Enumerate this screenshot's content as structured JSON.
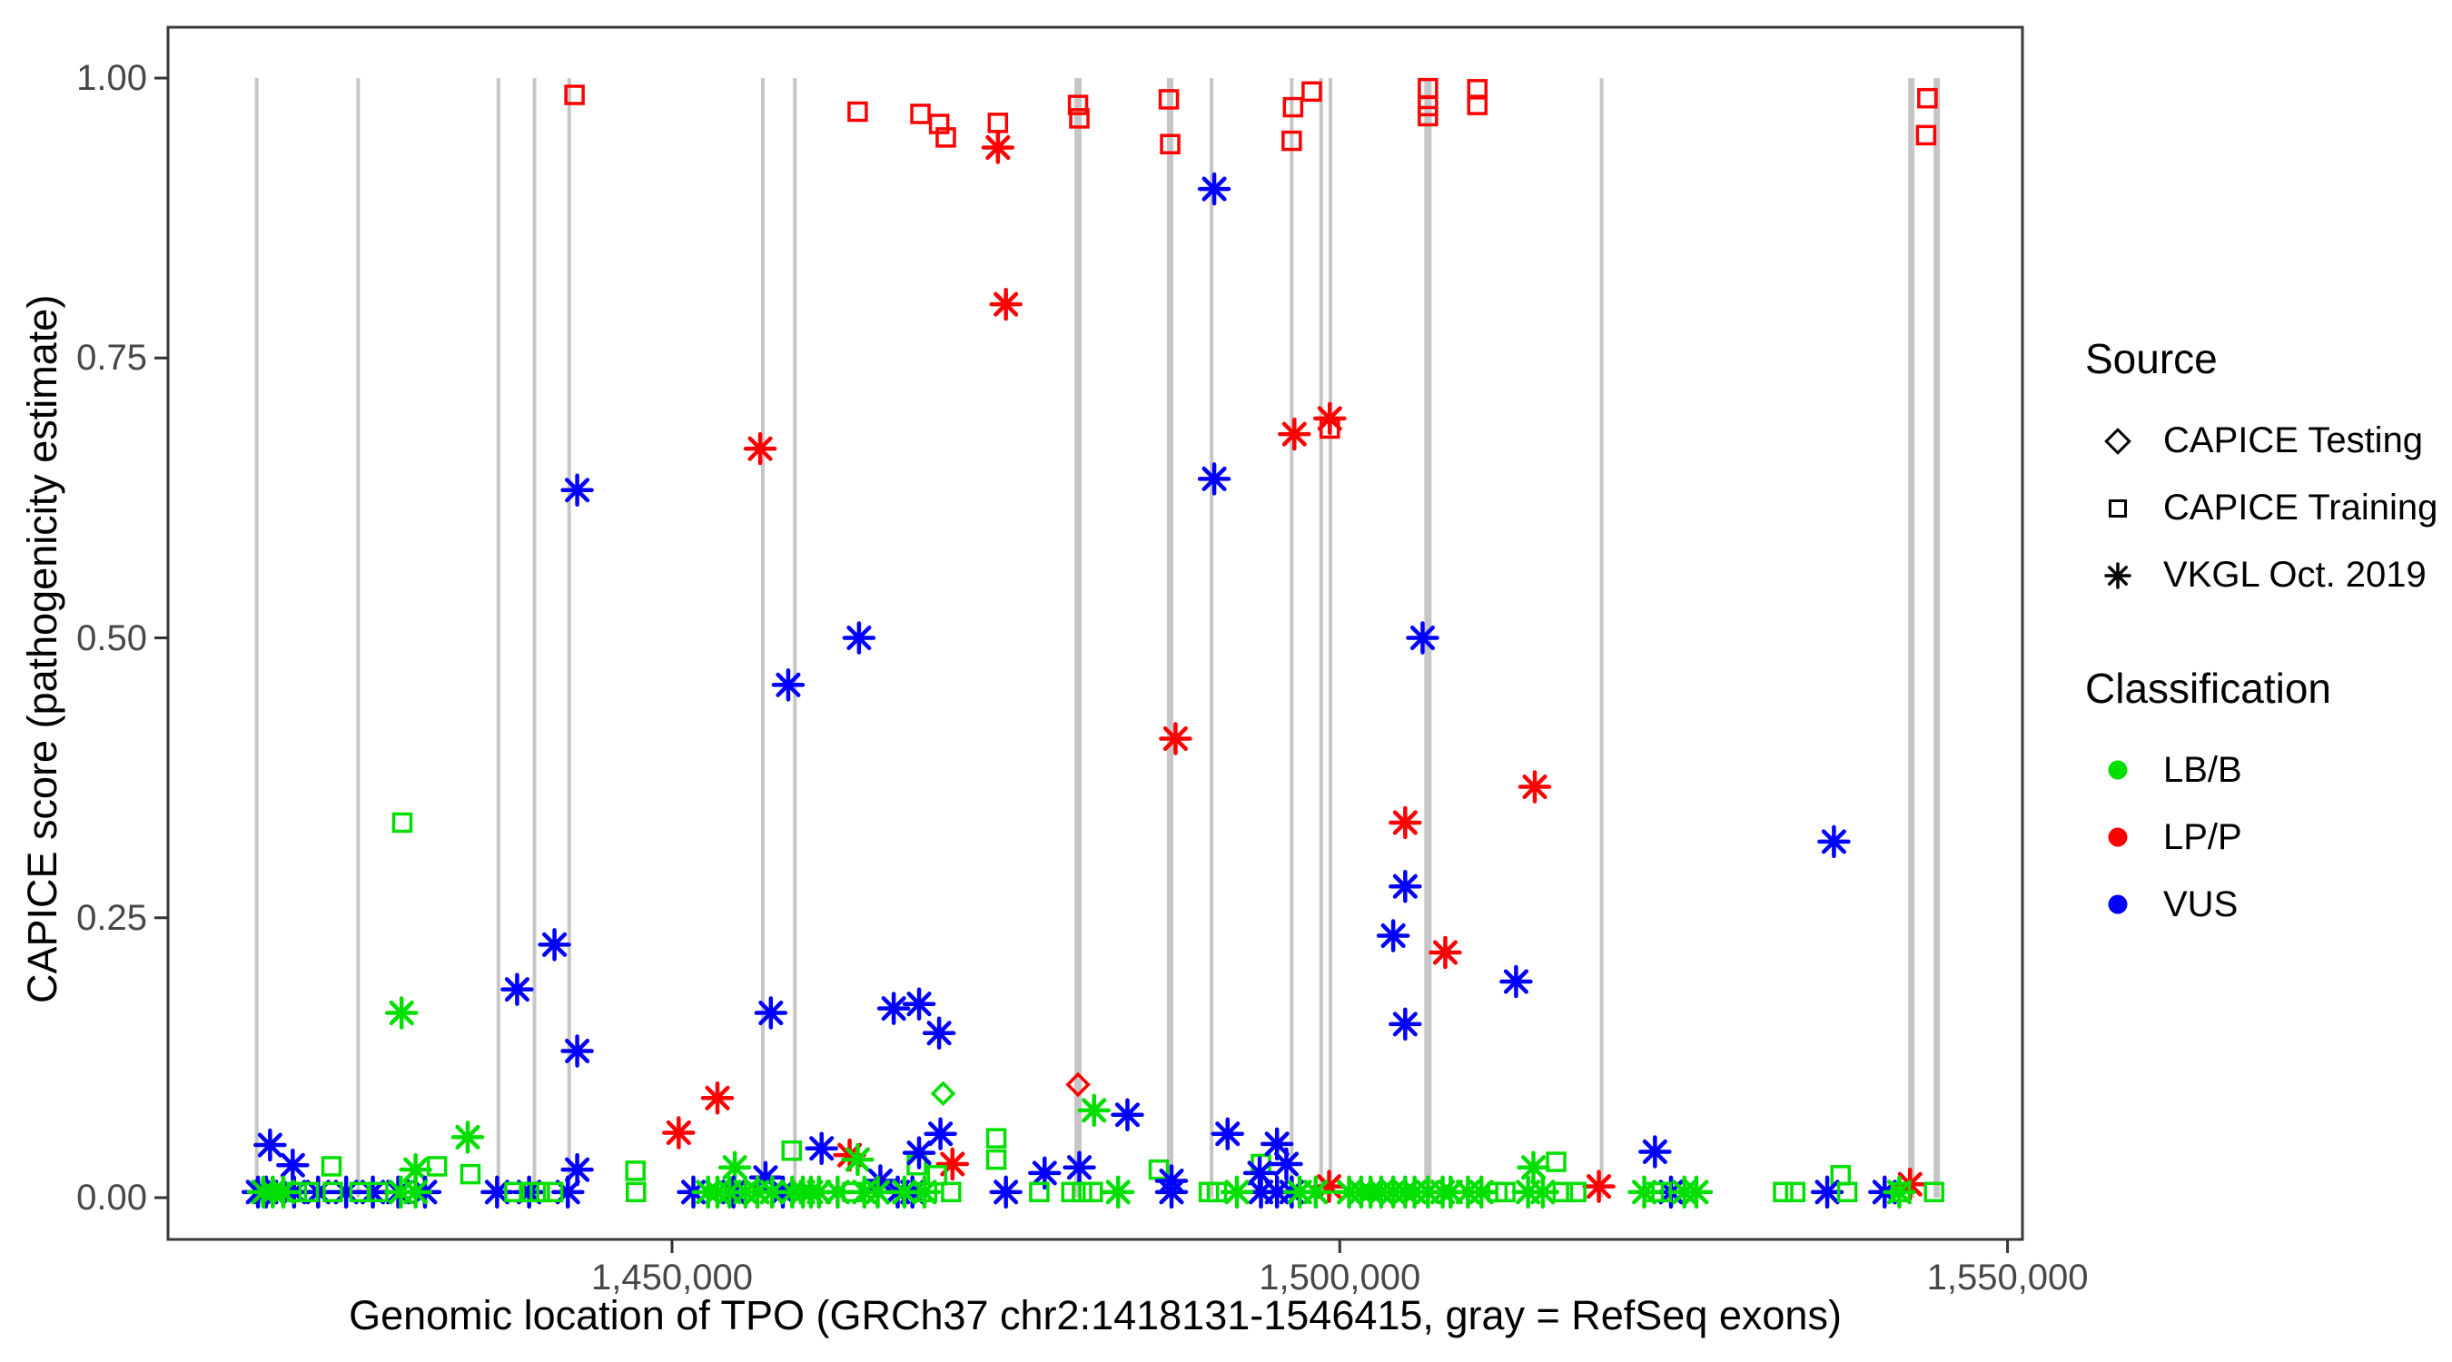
{
  "figure": {
    "x_axis_title": "Genomic location of TPO (GRCh37 chr2:1418131-1546415, gray = RefSeq exons)",
    "y_axis_title": "CAPICE score (pathogenicity estimate)"
  },
  "legend": {
    "source": {
      "title": "Source",
      "items": [
        {
          "label": "CAPICE Testing",
          "marker": "diamond-icon"
        },
        {
          "label": "CAPICE Training",
          "marker": "square-icon"
        },
        {
          "label": "VKGL Oct. 2019",
          "marker": "asterisk-icon"
        }
      ]
    },
    "classification": {
      "title": "Classification",
      "items": [
        {
          "label": "LB/B",
          "color": "#00DF00"
        },
        {
          "label": "LP/P",
          "color": "#FF0000"
        },
        {
          "label": "VUS",
          "color": "#0000FF"
        }
      ]
    }
  },
  "chart_data": {
    "type": "scatter",
    "title": "",
    "xlabel": "Genomic location of TPO (GRCh37 chr2:1418131-1546415, gray = RefSeq exons)",
    "ylabel": "CAPICE score (pathogenicity estimate)",
    "xlim": [
      1412260,
      1551116
    ],
    "ylim": [
      0,
      1
    ],
    "grid": false,
    "legend_position": "right",
    "x_ticks": [
      {
        "value": 1450000,
        "label": "1,450,000"
      },
      {
        "value": 1500000,
        "label": "1,500,000"
      },
      {
        "value": 1550000,
        "label": "1,550,000"
      }
    ],
    "y_ticks": [
      {
        "value": 0.0,
        "label": "0.00"
      },
      {
        "value": 0.25,
        "label": "0.25"
      },
      {
        "value": 0.5,
        "label": "0.50"
      },
      {
        "value": 0.75,
        "label": "0.75"
      },
      {
        "value": 1.0,
        "label": "1.00"
      }
    ],
    "colors": {
      "LB/B": "#00DF00",
      "LP/P": "#FF0000",
      "VUS": "#0000FF",
      "exon_gray": "#C6C6C6"
    },
    "marker_codes": {
      "a": "asterisk = VKGL Oct. 2019",
      "s": "square = CAPICE Training",
      "d": "diamond = CAPICE Testing"
    },
    "class_codes": {
      "g": "LB/B",
      "r": "LP/P",
      "b": "VUS"
    },
    "refseq_exons": [
      {
        "x": 1418900,
        "w": 4
      },
      {
        "x": 1426500,
        "w": 4
      },
      {
        "x": 1437000,
        "w": 4
      },
      {
        "x": 1439700,
        "w": 4
      },
      {
        "x": 1442300,
        "w": 4
      },
      {
        "x": 1456800,
        "w": 4
      },
      {
        "x": 1459200,
        "w": 4
      },
      {
        "x": 1480400,
        "w": 8
      },
      {
        "x": 1487300,
        "w": 7
      },
      {
        "x": 1490400,
        "w": 4
      },
      {
        "x": 1496400,
        "w": 4
      },
      {
        "x": 1498600,
        "w": 4
      },
      {
        "x": 1499300,
        "w": 4
      },
      {
        "x": 1506600,
        "w": 8
      },
      {
        "x": 1519600,
        "w": 4
      },
      {
        "x": 1542800,
        "w": 7
      },
      {
        "x": 1544700,
        "w": 7
      }
    ],
    "points": [
      [
        1442700,
        0.985,
        "s",
        "r"
      ],
      [
        1463900,
        0.97,
        "s",
        "r"
      ],
      [
        1468600,
        0.968,
        "s",
        "r"
      ],
      [
        1470000,
        0.959,
        "s",
        "r"
      ],
      [
        1470500,
        0.947,
        "s",
        "r"
      ],
      [
        1474400,
        0.96,
        "s",
        "r"
      ],
      [
        1480400,
        0.976,
        "s",
        "r"
      ],
      [
        1480500,
        0.964,
        "s",
        "r"
      ],
      [
        1487200,
        0.981,
        "s",
        "r"
      ],
      [
        1487300,
        0.941,
        "s",
        "r"
      ],
      [
        1496500,
        0.974,
        "s",
        "r"
      ],
      [
        1497900,
        0.988,
        "s",
        "r"
      ],
      [
        1496400,
        0.944,
        "s",
        "r"
      ],
      [
        1499250,
        0.687,
        "s",
        "r"
      ],
      [
        1506600,
        0.991,
        "s",
        "r"
      ],
      [
        1506600,
        0.975,
        "s",
        "r"
      ],
      [
        1506600,
        0.966,
        "s",
        "r"
      ],
      [
        1510300,
        0.99,
        "s",
        "r"
      ],
      [
        1510300,
        0.976,
        "s",
        "r"
      ],
      [
        1544000,
        0.982,
        "s",
        "r"
      ],
      [
        1543900,
        0.949,
        "s",
        "r"
      ],
      [
        1474400,
        0.938,
        "a",
        "r"
      ],
      [
        1475000,
        0.798,
        "a",
        "r"
      ],
      [
        1456600,
        0.669,
        "a",
        "r"
      ],
      [
        1496600,
        0.682,
        "a",
        "r"
      ],
      [
        1499250,
        0.696,
        "a",
        "r"
      ],
      [
        1514600,
        0.367,
        "a",
        "r"
      ],
      [
        1504900,
        0.335,
        "a",
        "r"
      ],
      [
        1507900,
        0.219,
        "a",
        "r"
      ],
      [
        1487700,
        0.41,
        "a",
        "r"
      ],
      [
        1453400,
        0.089,
        "a",
        "r"
      ],
      [
        1450500,
        0.058,
        "a",
        "r"
      ],
      [
        1463300,
        0.038,
        "a",
        "r"
      ],
      [
        1471000,
        0.03,
        "a",
        "r"
      ],
      [
        1499200,
        0.01,
        "a",
        "r"
      ],
      [
        1519400,
        0.01,
        "a",
        "r"
      ],
      [
        1542700,
        0.012,
        "a",
        "r"
      ],
      [
        1480400,
        0.101,
        "d",
        "r"
      ],
      [
        1470300,
        0.093,
        "d",
        "g"
      ],
      [
        1429800,
        0.335,
        "s",
        "g"
      ],
      [
        1424500,
        0.028,
        "s",
        "g"
      ],
      [
        1432400,
        0.028,
        "s",
        "g"
      ],
      [
        1434900,
        0.021,
        "s",
        "g"
      ],
      [
        1458960,
        0.042,
        "s",
        "g"
      ],
      [
        1474280,
        0.053,
        "s",
        "g"
      ],
      [
        1474280,
        0.034,
        "s",
        "g"
      ],
      [
        1468330,
        0.029,
        "s",
        "g"
      ],
      [
        1469840,
        0.02,
        "s",
        "g"
      ],
      [
        1494100,
        0.03,
        "s",
        "g"
      ],
      [
        1486450,
        0.025,
        "s",
        "g"
      ],
      [
        1516200,
        0.032,
        "s",
        "g"
      ],
      [
        1537500,
        0.02,
        "s",
        "g"
      ],
      [
        1447260,
        0.024,
        "s",
        "g"
      ],
      [
        1429750,
        0.165,
        "a",
        "g"
      ],
      [
        1434700,
        0.054,
        "a",
        "g"
      ],
      [
        1430800,
        0.025,
        "a",
        "g"
      ],
      [
        1454700,
        0.027,
        "a",
        "g"
      ],
      [
        1463900,
        0.034,
        "a",
        "g"
      ],
      [
        1481600,
        0.078,
        "a",
        "g"
      ],
      [
        1514500,
        0.027,
        "a",
        "g"
      ],
      [
        1442900,
        0.632,
        "a",
        "b"
      ],
      [
        1490600,
        0.901,
        "a",
        "b"
      ],
      [
        1464000,
        0.5,
        "a",
        "b"
      ],
      [
        1458700,
        0.458,
        "a",
        "b"
      ],
      [
        1490600,
        0.642,
        "a",
        "b"
      ],
      [
        1506200,
        0.5,
        "a",
        "b"
      ],
      [
        1441200,
        0.226,
        "a",
        "b"
      ],
      [
        1438400,
        0.186,
        "a",
        "b"
      ],
      [
        1442900,
        0.131,
        "a",
        "b"
      ],
      [
        1419900,
        0.047,
        "a",
        "b"
      ],
      [
        1421600,
        0.029,
        "a",
        "b"
      ],
      [
        1457400,
        0.165,
        "a",
        "b"
      ],
      [
        1466600,
        0.169,
        "a",
        "b"
      ],
      [
        1468500,
        0.173,
        "a",
        "b"
      ],
      [
        1470000,
        0.147,
        "a",
        "b"
      ],
      [
        1461200,
        0.044,
        "a",
        "b"
      ],
      [
        1468500,
        0.04,
        "a",
        "b"
      ],
      [
        1470100,
        0.057,
        "a",
        "b"
      ],
      [
        1484100,
        0.074,
        "a",
        "b"
      ],
      [
        1491600,
        0.057,
        "a",
        "b"
      ],
      [
        1495300,
        0.048,
        "a",
        "b"
      ],
      [
        1496000,
        0.03,
        "a",
        "b"
      ],
      [
        1494000,
        0.022,
        "a",
        "b"
      ],
      [
        1504900,
        0.278,
        "a",
        "b"
      ],
      [
        1504000,
        0.234,
        "a",
        "b"
      ],
      [
        1513200,
        0.193,
        "a",
        "b"
      ],
      [
        1504900,
        0.155,
        "a",
        "b"
      ],
      [
        1523600,
        0.041,
        "a",
        "b"
      ],
      [
        1537000,
        0.318,
        "a",
        "b"
      ],
      [
        1480500,
        0.027,
        "a",
        "b"
      ],
      [
        1477900,
        0.022,
        "a",
        "b"
      ],
      [
        1457000,
        0.018,
        "a",
        "b"
      ],
      [
        1465600,
        0.015,
        "a",
        "b"
      ],
      [
        1487400,
        0.015,
        "a",
        "b"
      ],
      [
        1442900,
        0.025,
        "a",
        "b"
      ],
      [
        1419000,
        0.005,
        "a",
        "b"
      ],
      [
        1419600,
        0.005,
        "a",
        "b"
      ],
      [
        1421700,
        0.005,
        "a",
        "b"
      ],
      [
        1423500,
        0.005,
        "a",
        "b"
      ],
      [
        1425600,
        0.005,
        "a",
        "b"
      ],
      [
        1427600,
        0.005,
        "a",
        "b"
      ],
      [
        1429500,
        0.005,
        "a",
        "b"
      ],
      [
        1431500,
        0.005,
        "a",
        "b"
      ],
      [
        1436900,
        0.005,
        "a",
        "b"
      ],
      [
        1439300,
        0.005,
        "a",
        "b"
      ],
      [
        1442200,
        0.005,
        "a",
        "b"
      ],
      [
        1451600,
        0.005,
        "a",
        "b"
      ],
      [
        1454600,
        0.005,
        "a",
        "b"
      ],
      [
        1458300,
        0.005,
        "a",
        "b"
      ],
      [
        1466900,
        0.005,
        "a",
        "b"
      ],
      [
        1468000,
        0.005,
        "a",
        "b"
      ],
      [
        1475000,
        0.005,
        "a",
        "b"
      ],
      [
        1494100,
        0.005,
        "a",
        "b"
      ],
      [
        1495300,
        0.005,
        "a",
        "b"
      ],
      [
        1496400,
        0.005,
        "a",
        "b"
      ],
      [
        1487400,
        0.005,
        "a",
        "b"
      ],
      [
        1524800,
        0.005,
        "a",
        "b"
      ],
      [
        1536500,
        0.005,
        "a",
        "b"
      ],
      [
        1540800,
        0.005,
        "a",
        "b"
      ],
      [
        1419400,
        0.005,
        "a",
        "g"
      ],
      [
        1420100,
        0.005,
        "a",
        "g"
      ],
      [
        1420900,
        0.005,
        "a",
        "g"
      ],
      [
        1429700,
        0.005,
        "a",
        "g"
      ],
      [
        1430800,
        0.005,
        "a",
        "g"
      ],
      [
        1452700,
        0.005,
        "a",
        "g"
      ],
      [
        1453400,
        0.005,
        "a",
        "g"
      ],
      [
        1454300,
        0.005,
        "a",
        "g"
      ],
      [
        1455500,
        0.005,
        "a",
        "g"
      ],
      [
        1456400,
        0.005,
        "a",
        "g"
      ],
      [
        1457500,
        0.005,
        "a",
        "g"
      ],
      [
        1459000,
        0.005,
        "a",
        "g"
      ],
      [
        1459800,
        0.005,
        "a",
        "g"
      ],
      [
        1460400,
        0.005,
        "a",
        "g"
      ],
      [
        1461000,
        0.005,
        "a",
        "g"
      ],
      [
        1462400,
        0.005,
        "a",
        "g"
      ],
      [
        1464400,
        0.005,
        "a",
        "g"
      ],
      [
        1465400,
        0.005,
        "a",
        "g"
      ],
      [
        1467400,
        0.005,
        "a",
        "g"
      ],
      [
        1468900,
        0.005,
        "a",
        "g"
      ],
      [
        1483400,
        0.005,
        "a",
        "g"
      ],
      [
        1492300,
        0.005,
        "a",
        "g"
      ],
      [
        1497000,
        0.005,
        "a",
        "g"
      ],
      [
        1498200,
        0.005,
        "a",
        "g"
      ],
      [
        1500700,
        0.005,
        "a",
        "g"
      ],
      [
        1501600,
        0.005,
        "a",
        "g"
      ],
      [
        1502300,
        0.005,
        "a",
        "g"
      ],
      [
        1503100,
        0.005,
        "a",
        "g"
      ],
      [
        1504000,
        0.005,
        "a",
        "g"
      ],
      [
        1504900,
        0.005,
        "a",
        "g"
      ],
      [
        1505600,
        0.005,
        "a",
        "g"
      ],
      [
        1506600,
        0.005,
        "a",
        "g"
      ],
      [
        1507700,
        0.005,
        "a",
        "g"
      ],
      [
        1508300,
        0.005,
        "a",
        "g"
      ],
      [
        1509600,
        0.005,
        "a",
        "g"
      ],
      [
        1510600,
        0.005,
        "a",
        "g"
      ],
      [
        1514100,
        0.005,
        "a",
        "g"
      ],
      [
        1515200,
        0.005,
        "a",
        "g"
      ],
      [
        1522800,
        0.005,
        "a",
        "g"
      ],
      [
        1525800,
        0.005,
        "a",
        "g"
      ],
      [
        1526700,
        0.005,
        "a",
        "g"
      ],
      [
        1541900,
        0.005,
        "a",
        "g"
      ],
      [
        1421900,
        0.005,
        "s",
        "g"
      ],
      [
        1422800,
        0.005,
        "s",
        "g"
      ],
      [
        1424600,
        0.005,
        "s",
        "g"
      ],
      [
        1426600,
        0.005,
        "s",
        "g"
      ],
      [
        1428000,
        0.005,
        "s",
        "g"
      ],
      [
        1438200,
        0.005,
        "s",
        "g"
      ],
      [
        1439300,
        0.005,
        "s",
        "g"
      ],
      [
        1440100,
        0.005,
        "s",
        "g"
      ],
      [
        1441100,
        0.005,
        "s",
        "g"
      ],
      [
        1447300,
        0.005,
        "s",
        "g"
      ],
      [
        1463500,
        0.005,
        "s",
        "g"
      ],
      [
        1469100,
        0.005,
        "s",
        "g"
      ],
      [
        1470900,
        0.005,
        "s",
        "g"
      ],
      [
        1477500,
        0.005,
        "s",
        "g"
      ],
      [
        1479900,
        0.005,
        "s",
        "g"
      ],
      [
        1480700,
        0.005,
        "s",
        "g"
      ],
      [
        1481500,
        0.005,
        "s",
        "g"
      ],
      [
        1490200,
        0.005,
        "s",
        "g"
      ],
      [
        1490800,
        0.005,
        "s",
        "g"
      ],
      [
        1511800,
        0.005,
        "s",
        "g"
      ],
      [
        1512400,
        0.005,
        "s",
        "g"
      ],
      [
        1516700,
        0.005,
        "s",
        "g"
      ],
      [
        1517700,
        0.005,
        "s",
        "g"
      ],
      [
        1523500,
        0.005,
        "s",
        "g"
      ],
      [
        1524100,
        0.005,
        "s",
        "g"
      ],
      [
        1533200,
        0.005,
        "s",
        "g"
      ],
      [
        1534100,
        0.005,
        "s",
        "g"
      ],
      [
        1538000,
        0.005,
        "s",
        "g"
      ],
      [
        1542000,
        0.005,
        "s",
        "g"
      ],
      [
        1544500,
        0.005,
        "s",
        "g"
      ]
    ]
  }
}
